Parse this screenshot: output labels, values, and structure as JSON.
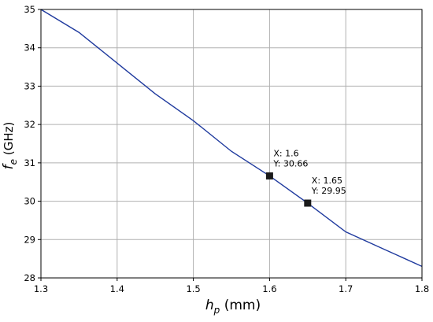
{
  "chart_data": {
    "type": "line",
    "xlabel": {
      "main": "h",
      "sub": "p",
      "unit": " (mm)"
    },
    "ylabel": {
      "main": "f",
      "sub": "e",
      "unit": " (GHz)"
    },
    "xlim": [
      1.3,
      1.8
    ],
    "ylim": [
      28,
      35
    ],
    "x_ticks": [
      "1.3",
      "1.4",
      "1.5",
      "1.6",
      "1.7",
      "1.8"
    ],
    "y_ticks": [
      "28",
      "29",
      "30",
      "31",
      "32",
      "33",
      "34",
      "35"
    ],
    "grid": true,
    "series": [
      {
        "color": "#1f3a9e",
        "x": [
          1.3,
          1.35,
          1.4,
          1.45,
          1.5,
          1.55,
          1.6,
          1.65,
          1.7,
          1.75,
          1.8
        ],
        "y": [
          35.0,
          34.4,
          33.6,
          32.8,
          32.1,
          31.3,
          30.66,
          29.95,
          29.2,
          28.75,
          28.3
        ]
      }
    ],
    "markers": [
      {
        "x": 1.6,
        "y": 30.66,
        "label_x": "X: 1.6",
        "label_y": "Y: 30.66"
      },
      {
        "x": 1.65,
        "y": 29.95,
        "label_x": "X: 1.65",
        "label_y": "Y: 29.95"
      }
    ]
  }
}
